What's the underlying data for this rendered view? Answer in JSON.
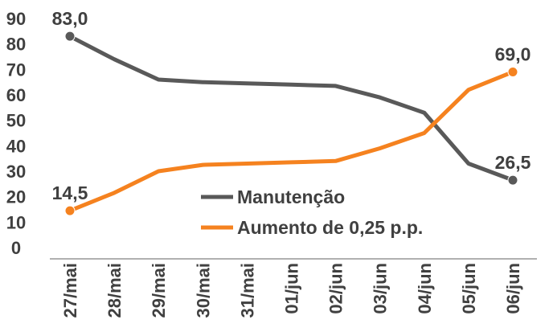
{
  "chart_data": {
    "type": "line",
    "categories": [
      "27/mai",
      "28/mai",
      "29/mai",
      "30/mai",
      "31/mai",
      "01/jun",
      "02/jun",
      "03/jun",
      "04/jun",
      "05/jun",
      "06/jun"
    ],
    "series": [
      {
        "name": "Manutenção",
        "color": "#595959",
        "values": [
          83.0,
          74.0,
          66.0,
          65.0,
          64.5,
          64.0,
          63.5,
          59.0,
          53.0,
          33.0,
          26.5
        ]
      },
      {
        "name": "Aumento de 0,25 p.p.",
        "color": "#F5821F",
        "values": [
          14.5,
          21.5,
          30.0,
          32.5,
          33.0,
          33.5,
          34.0,
          39.0,
          45.0,
          62.0,
          69.0
        ]
      }
    ],
    "ylim": [
      0,
      90
    ],
    "yticks": [
      "0",
      "10",
      "20",
      "30",
      "40",
      "50",
      "60",
      "70",
      "80",
      "90"
    ],
    "data_labels": [
      {
        "series": 0,
        "index": 0,
        "text": "83,0"
      },
      {
        "series": 0,
        "index": 10,
        "text": "26,5"
      },
      {
        "series": 1,
        "index": 0,
        "text": "14,5"
      },
      {
        "series": 1,
        "index": 10,
        "text": "69,0"
      }
    ],
    "legend": {
      "position": "center-right",
      "entries": [
        "Manutenção",
        "Aumento de 0,25 p.p."
      ]
    },
    "grid": false
  }
}
